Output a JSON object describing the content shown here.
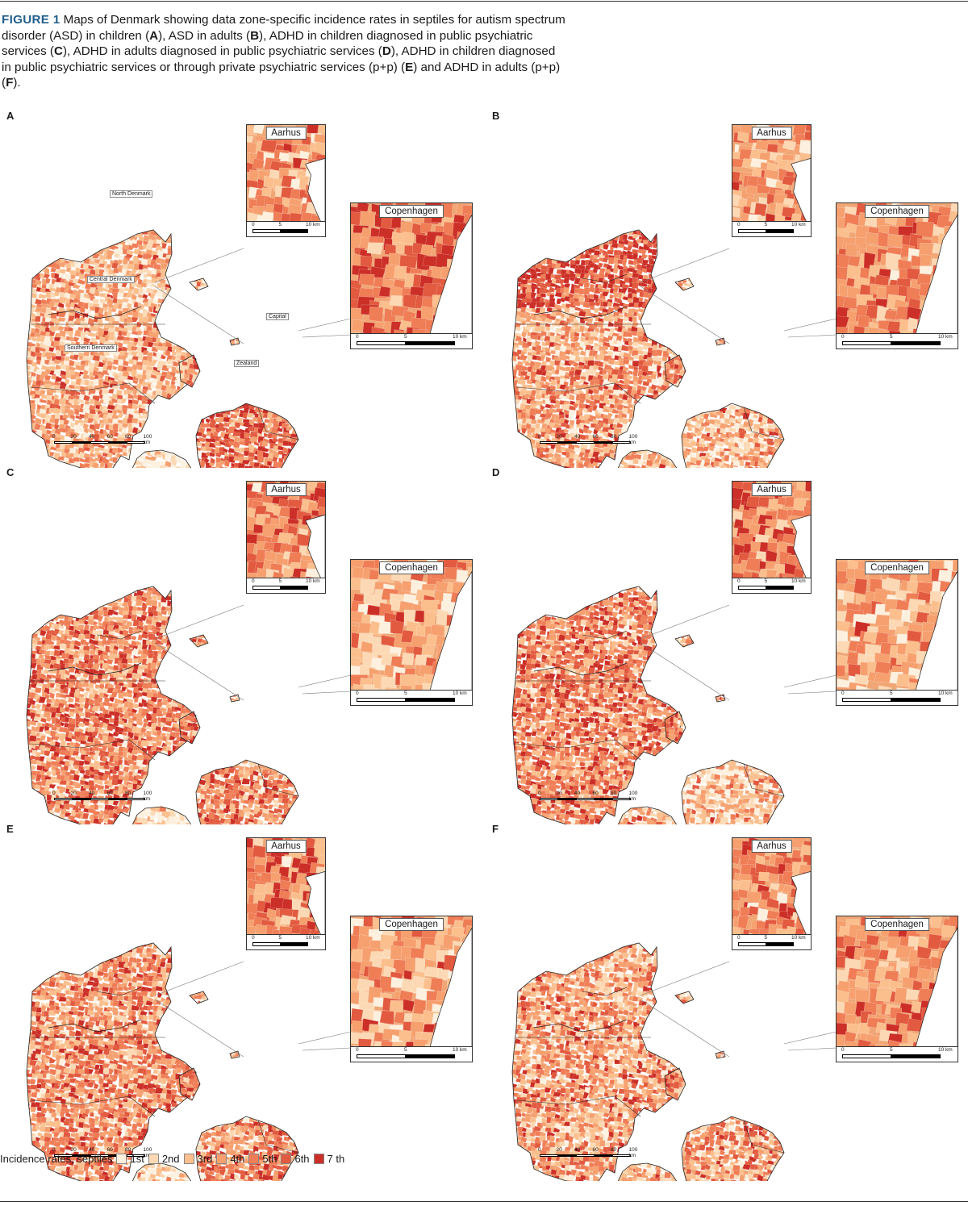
{
  "figure": {
    "label": "FIGURE 1",
    "caption_runs": [
      " Maps of Denmark showing data zone-specific incidence rates in septiles for autism spectrum disorder (ASD) in children (",
      "A",
      "), ASD in adults (",
      "B",
      "), ADHD in children diagnosed in public psychiatric services (",
      "C",
      "), ADHD in adults diagnosed in public psychiatric services (",
      "D",
      "), ADHD in children diagnosed in public psychiatric services or through private psychiatric services (p+p) (",
      "E",
      ") and ADHD in adults (p+p) (",
      "F",
      ")."
    ]
  },
  "panels": [
    {
      "letter": "A",
      "main_bias": -0.4,
      "zealand_bias": 1.6,
      "fyn_bias": -3,
      "inset1_bias": -0.3,
      "inset2_bias": 1.4,
      "seed": 11,
      "show_regions": true
    },
    {
      "letter": "B",
      "main_bias": 0.2,
      "zealand_bias": -0.6,
      "fyn_bias": -0.6,
      "inset1_bias": 0.2,
      "inset2_bias": 0.3,
      "seed": 23,
      "show_regions": false,
      "north_bias": 2.2
    },
    {
      "letter": "C",
      "main_bias": 0.9,
      "zealand_bias": 0.6,
      "fyn_bias": -1.8,
      "inset1_bias": 0.7,
      "inset2_bias": -0.4,
      "seed": 37,
      "show_regions": false
    },
    {
      "letter": "D",
      "main_bias": 0.9,
      "zealand_bias": -1.0,
      "fyn_bias": -0.6,
      "inset1_bias": 1.2,
      "inset2_bias": -0.6,
      "seed": 41,
      "show_regions": false
    },
    {
      "letter": "E",
      "main_bias": 0.6,
      "zealand_bias": 0.9,
      "fyn_bias": -1.6,
      "inset1_bias": 1.0,
      "inset2_bias": -0.2,
      "seed": 53,
      "show_regions": false
    },
    {
      "letter": "F",
      "main_bias": 0.1,
      "zealand_bias": 0.2,
      "fyn_bias": -0.9,
      "inset1_bias": 1.0,
      "inset2_bias": 0.4,
      "seed": 67,
      "show_regions": false
    }
  ],
  "regions": {
    "north": "North Denmark",
    "central": "Central Denmark",
    "southern": "Southern Denmark",
    "capital": "Capital",
    "zealand": "Zealand"
  },
  "insets": {
    "aarhus_title": "Aarhus",
    "copenhagen_title": "Copenhagen",
    "scale_ticks": [
      "0",
      "5",
      "10 km"
    ]
  },
  "main_scale_ticks": [
    "0",
    "20",
    "40",
    "60",
    "80",
    "100 km"
  ],
  "legend": {
    "title": "Incidence rates, septiles",
    "items": [
      {
        "label": "1st",
        "color": "#fdf0de"
      },
      {
        "label": "2nd",
        "color": "#fcd9b4"
      },
      {
        "label": "3rd",
        "color": "#fbbf8d"
      },
      {
        "label": "4th",
        "color": "#f6a06f"
      },
      {
        "label": "5th",
        "color": "#ef7d56"
      },
      {
        "label": "6th",
        "color": "#e25a3f"
      },
      {
        "label": "7 th",
        "color": "#cc2f27"
      }
    ]
  }
}
